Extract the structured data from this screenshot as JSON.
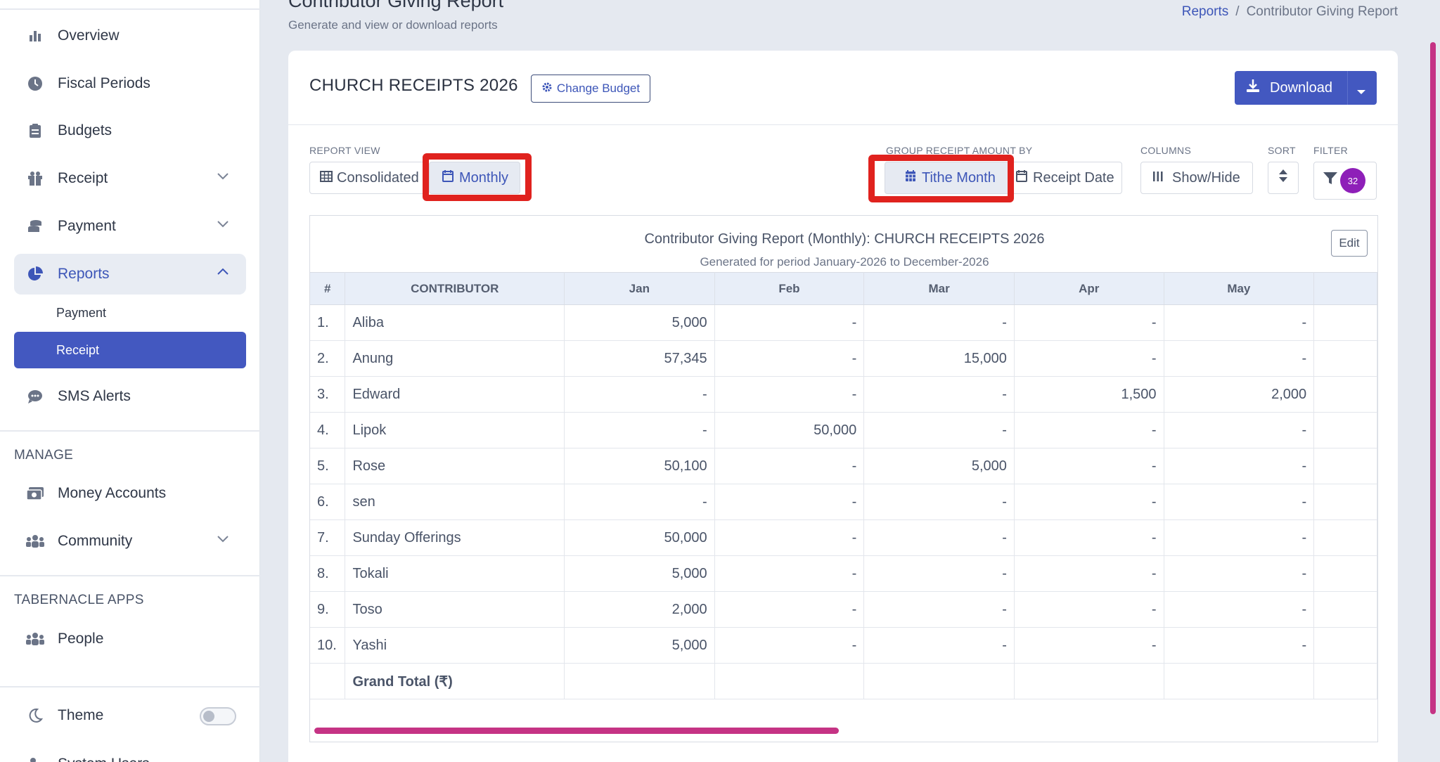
{
  "sidebar": {
    "items": [
      {
        "label": "Overview",
        "icon": "bar-chart-icon"
      },
      {
        "label": "Fiscal Periods",
        "icon": "clock-icon"
      },
      {
        "label": "Budgets",
        "icon": "clipboard-icon"
      },
      {
        "label": "Receipt",
        "icon": "gift-icon"
      },
      {
        "label": "Payment",
        "icon": "coins-icon"
      },
      {
        "label": "Reports",
        "icon": "pie-chart-icon"
      },
      {
        "label": "SMS Alerts",
        "icon": "chat-icon"
      }
    ],
    "reports_sub": [
      {
        "label": "Payment"
      },
      {
        "label": "Receipt"
      }
    ],
    "manage_heading": "MANAGE",
    "manage_items": [
      {
        "label": "Money Accounts"
      },
      {
        "label": "Community"
      }
    ],
    "apps_heading": "TABERNACLE APPS",
    "apps_items": [
      {
        "label": "People"
      }
    ],
    "theme_label": "Theme",
    "system_users_label": "System Users"
  },
  "header": {
    "title": "Contributor Giving Report",
    "subtitle": "Generate and view or download reports",
    "breadcrumb": {
      "link": "Reports",
      "separator": "/",
      "current": "Contributor Giving Report"
    }
  },
  "card": {
    "title": "CHURCH RECEIPTS 2026",
    "change_budget": "Change Budget",
    "download": "Download"
  },
  "controls": {
    "report_view_label": "REPORT VIEW",
    "consolidated": "Consolidated",
    "monthly": "Monthly",
    "group_label": "GROUP RECEIPT AMOUNT BY",
    "tithe_month": "Tithe Month",
    "receipt_date": "Receipt Date",
    "columns_label": "COLUMNS",
    "show_hide": "Show/Hide",
    "sort_label": "SORT",
    "filter_label": "FILTER",
    "filter_count": "32"
  },
  "report": {
    "title": "Contributor Giving Report (Monthly): CHURCH RECEIPTS 2026",
    "period": "Generated for period January-2026 to December-2026",
    "edit": "Edit",
    "columns": [
      "#",
      "CONTRIBUTOR",
      "Jan",
      "Feb",
      "Mar",
      "Apr",
      "May"
    ],
    "rows": [
      [
        "1.",
        "Aliba",
        "5,000",
        "-",
        "-",
        "-",
        "-"
      ],
      [
        "2.",
        "Anung",
        "57,345",
        "-",
        "15,000",
        "-",
        "-"
      ],
      [
        "3.",
        "Edward",
        "-",
        "-",
        "-",
        "1,500",
        "2,000"
      ],
      [
        "4.",
        "Lipok",
        "-",
        "50,000",
        "-",
        "-",
        "-"
      ],
      [
        "5.",
        "Rose",
        "50,100",
        "-",
        "5,000",
        "-",
        "-"
      ],
      [
        "6.",
        "sen",
        "-",
        "-",
        "-",
        "-",
        "-"
      ],
      [
        "7.",
        "Sunday Offerings",
        "50,000",
        "-",
        "-",
        "-",
        "-"
      ],
      [
        "8.",
        "Tokali",
        "5,000",
        "-",
        "-",
        "-",
        "-"
      ],
      [
        "9.",
        "Toso",
        "2,000",
        "-",
        "-",
        "-",
        "-"
      ],
      [
        "10.",
        "Yashi",
        "5,000",
        "-",
        "-",
        "-",
        "-"
      ]
    ],
    "grand_total_label": "Grand Total (₹)"
  },
  "colors": {
    "accent": "#4358c0",
    "highlight": "#e0221e",
    "scrollbar": "#c53384",
    "badge": "#8e1fb8"
  }
}
